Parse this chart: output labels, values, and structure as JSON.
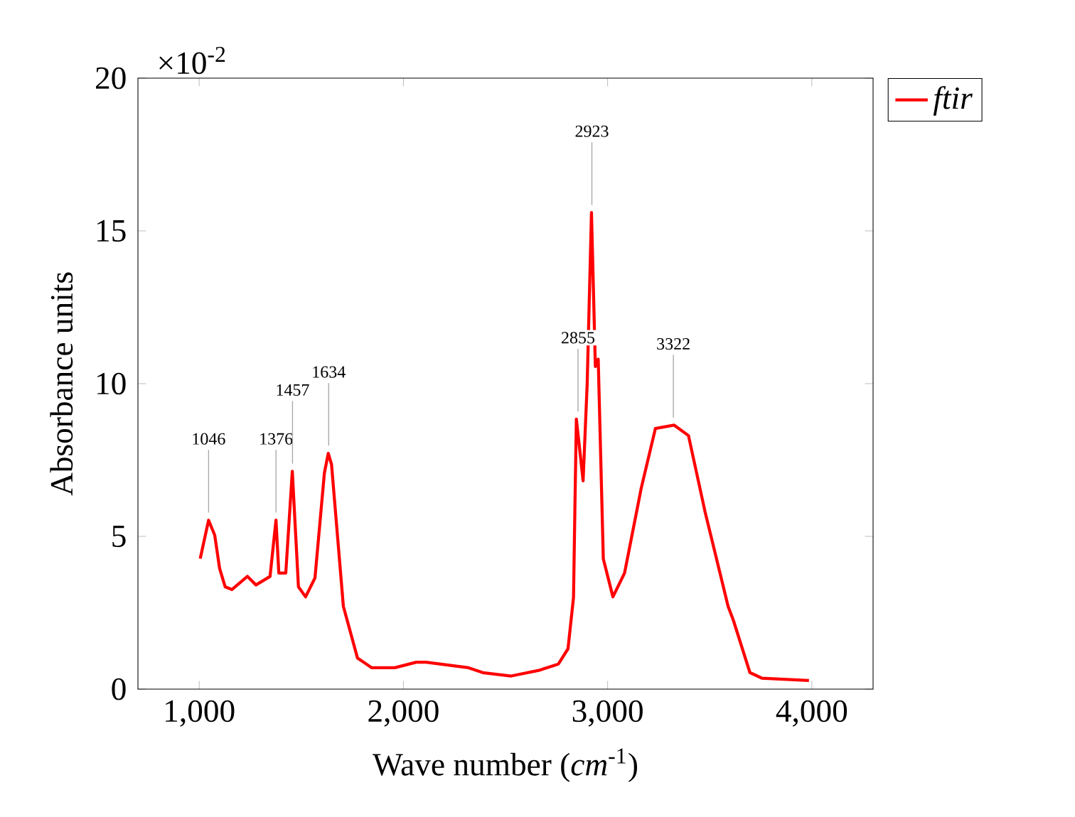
{
  "chart_data": {
    "type": "line",
    "xlabel": "Wave number (*cm*$^{-1}$)",
    "ylabel": "Absorbance units",
    "xlim": [
      700,
      4300
    ],
    "xticks": [
      {
        "value": 1000,
        "label": "1,000"
      },
      {
        "value": 2000,
        "label": "2,000"
      },
      {
        "value": 3000,
        "label": "3,000"
      },
      {
        "value": 4000,
        "label": "4,000"
      }
    ],
    "ylim": [
      0,
      20
    ],
    "yticks": [
      0,
      5,
      10,
      15,
      20
    ],
    "legend": "right",
    "grid": false,
    "marker": "none",
    "line_style": "solid",
    "x": [
      1005,
      1046,
      1076,
      1100,
      1127,
      1160,
      1236,
      1278,
      1347,
      1376,
      1390,
      1424,
      1456,
      1486,
      1521,
      1567,
      1613,
      1632,
      1648,
      1706,
      1775,
      1845,
      1958,
      2063,
      2111,
      2319,
      2389,
      2528,
      2667,
      2759,
      2806,
      2833,
      2840,
      2847,
      2880,
      2900,
      2921,
      2940,
      2954,
      2979,
      3026,
      3083,
      3165,
      3234,
      3326,
      3396,
      3477,
      3590,
      3616,
      3697,
      3755,
      3986
    ],
    "series": [
      {
        "name": "ftir",
        "color": "#ff0000",
        "values": [
          4.27,
          5.53,
          5.04,
          3.95,
          3.35,
          3.26,
          3.69,
          3.41,
          3.69,
          5.53,
          3.8,
          3.8,
          7.13,
          3.35,
          3.02,
          3.64,
          7.07,
          7.72,
          7.36,
          2.71,
          1.02,
          0.7,
          0.7,
          0.88,
          0.88,
          0.7,
          0.54,
          0.43,
          0.62,
          0.82,
          1.32,
          3.0,
          6.0,
          8.84,
          6.82,
          10.0,
          15.6,
          10.56,
          10.8,
          4.26,
          3.02,
          3.8,
          6.59,
          8.53,
          8.64,
          8.3,
          5.81,
          2.71,
          2.25,
          0.54,
          0.36,
          0.28
        ]
      }
    ],
    "annotations": [
      "×10$^{-2}$",
      {
        "text": "1046",
        "x": 1046,
        "y": 5.53
      },
      {
        "text": "1376",
        "x": 1376,
        "y": 5.53
      },
      {
        "text": "1457",
        "x": 1457,
        "y": 7.13
      },
      {
        "text": "1634",
        "x": 1634,
        "y": 7.72
      },
      {
        "text": "2855",
        "x": 2855,
        "y": 8.84
      },
      {
        "text": "2923",
        "x": 2923,
        "y": 15.6
      },
      {
        "text": "3322",
        "x": 3322,
        "y": 8.64
      }
    ]
  }
}
